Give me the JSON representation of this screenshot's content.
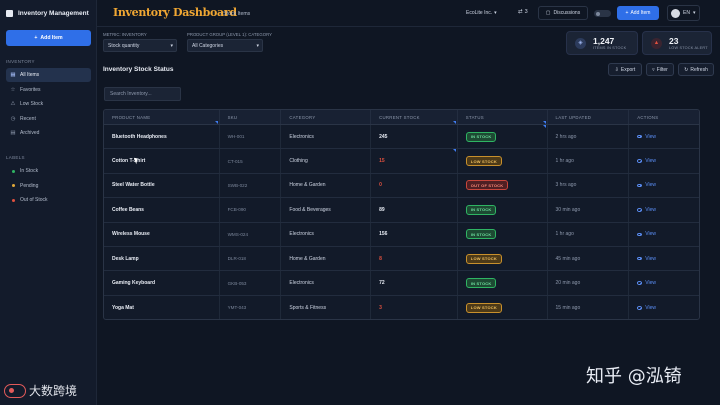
{
  "app": {
    "title": "Inventory Management"
  },
  "sidebar": {
    "add_button": "Add Item",
    "inventory_label": "INVENTORY",
    "nav_items": [
      {
        "label": "All Items",
        "icon": "grid-icon",
        "active": true
      },
      {
        "label": "Favorites",
        "icon": "star-icon",
        "active": false
      },
      {
        "label": "Low Stock",
        "icon": "warning-icon",
        "active": false
      },
      {
        "label": "Recent",
        "icon": "clock-icon",
        "active": false
      },
      {
        "label": "Archived",
        "icon": "archive-icon",
        "active": false
      }
    ],
    "labels_label": "LABELS",
    "labels": [
      {
        "label": "In Stock",
        "color": "#2fb463"
      },
      {
        "label": "Pending",
        "color": "#e0a83a"
      },
      {
        "label": "Out of Stock",
        "color": "#e0513f"
      }
    ]
  },
  "header": {
    "title": "Inventory Dashboard",
    "breadcrumb": "Stock Items",
    "company": "EcoLite Inc.",
    "notifications": "3",
    "discussions": "Discussions",
    "add_item": "Add Item",
    "language": "EN"
  },
  "filters": {
    "metric_label": "METRIC: INVENTORY",
    "metric_value": "Stock quantity",
    "group_label": "PRODUCT GROUP (LEVEL 1): CATEGORY",
    "group_value": "All Categories"
  },
  "stats": [
    {
      "value": "1,247",
      "label": "ITEMS IN STOCK",
      "color": "#5b8ef5"
    },
    {
      "value": "23",
      "label": "LOW STOCK ALERT",
      "color": "#e0513f"
    }
  ],
  "section": {
    "title": "Inventory Stock Status",
    "export": "Export",
    "filter": "Filter",
    "refresh": "Refresh",
    "search_placeholder": "Search Inventory..."
  },
  "table": {
    "columns": [
      "PRODUCT NAME",
      "SKU",
      "CATEGORY",
      "CURRENT STOCK",
      "STATUS",
      "LAST UPDATED",
      "ACTIONS"
    ],
    "view_label": "View",
    "rows": [
      {
        "name": "Bluetooth Headphones",
        "sku": "WH-001",
        "category": "Electronics",
        "stock": "245",
        "stock_color": "#e8ecf4",
        "status": "IN STOCK",
        "status_kind": "in",
        "updated": "2 hrs ago"
      },
      {
        "name": "Cotton T-Shirt",
        "sku": "CT-015",
        "category": "Clothing",
        "stock": "15",
        "stock_color": "#e0513f",
        "status": "LOW STOCK",
        "status_kind": "low",
        "updated": "1 hr ago"
      },
      {
        "name": "Steel Water Bottle",
        "sku": "SWB-022",
        "category": "Home & Garden",
        "stock": "0",
        "stock_color": "#e0513f",
        "status": "OUT OF STOCK",
        "status_kind": "out",
        "updated": "3 hrs ago"
      },
      {
        "name": "Coffee Beans",
        "sku": "FCB-090",
        "category": "Food & Beverages",
        "stock": "89",
        "stock_color": "#e8ecf4",
        "status": "IN STOCK",
        "status_kind": "in",
        "updated": "30 min ago"
      },
      {
        "name": "Wireless Mouse",
        "sku": "WMS-024",
        "category": "Electronics",
        "stock": "156",
        "stock_color": "#e8ecf4",
        "status": "IN STOCK",
        "status_kind": "in",
        "updated": "1 hr ago"
      },
      {
        "name": "Desk Lamp",
        "sku": "DLR-018",
        "category": "Home & Garden",
        "stock": "8",
        "stock_color": "#e0513f",
        "status": "LOW STOCK",
        "status_kind": "low",
        "updated": "45 min ago"
      },
      {
        "name": "Gaming Keyboard",
        "sku": "GKB-053",
        "category": "Electronics",
        "stock": "72",
        "stock_color": "#e8ecf4",
        "status": "IN STOCK",
        "status_kind": "in",
        "updated": "20 min ago"
      },
      {
        "name": "Yoga Mat",
        "sku": "YMT-043",
        "category": "Sports & Fitness",
        "stock": "3",
        "stock_color": "#e0513f",
        "status": "LOW STOCK",
        "status_kind": "low",
        "updated": "15 min ago"
      }
    ]
  },
  "watermarks": {
    "right": "知乎 @泓锜",
    "left": "大数跨境"
  }
}
